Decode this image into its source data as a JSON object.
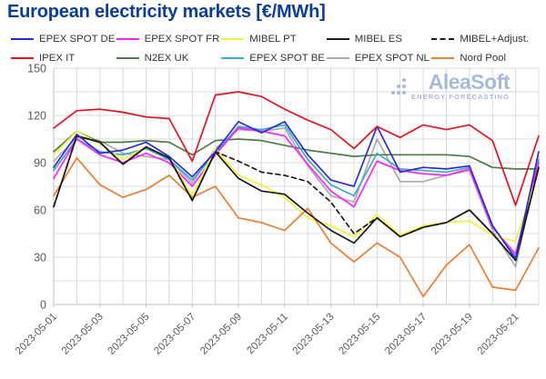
{
  "title": "European electricity markets [€/MWh]",
  "watermark": {
    "name": "AleaSoft",
    "tagline": "ENERGY FORECASTING",
    "color": "#9db1d6"
  },
  "chart_data": {
    "type": "line",
    "title": "European electricity markets [€/MWh]",
    "xlabel": "",
    "ylabel": "",
    "ylim": [
      0,
      150
    ],
    "ytick_step": 30,
    "grid_minor_step": 15,
    "grid": true,
    "legend_position": "top",
    "x_tick_every": 2,
    "axis_label_color": "#595959",
    "grid_color": "#d9d9d9",
    "axis_line_color": "#bfbfbf",
    "x": [
      "2023-05-01",
      "2023-05-02",
      "2023-05-03",
      "2023-05-04",
      "2023-05-05",
      "2023-05-06",
      "2023-05-07",
      "2023-05-08",
      "2023-05-09",
      "2023-05-10",
      "2023-05-11",
      "2023-05-12",
      "2023-05-13",
      "2023-05-14",
      "2023-05-15",
      "2023-05-16",
      "2023-05-17",
      "2023-05-18",
      "2023-05-19",
      "2023-05-20",
      "2023-05-21",
      "2023-05-22"
    ],
    "series": [
      {
        "name": "EPEX SPOT DE",
        "color": "#2b2bd5",
        "dash": "solid",
        "values": [
          87,
          108,
          96,
          98,
          103,
          94,
          81,
          97,
          116,
          109,
          116,
          95,
          79,
          75,
          113,
          84,
          87,
          86,
          88,
          50,
          29,
          97
        ]
      },
      {
        "name": "EPEX SPOT FR",
        "color": "#ff22ff",
        "dash": "solid",
        "values": [
          80,
          105,
          95,
          90,
          96,
          90,
          75,
          95,
          112,
          110,
          107,
          89,
          72,
          62,
          91,
          85,
          83,
          82,
          86,
          49,
          32,
          90
        ]
      },
      {
        "name": "MIBEL PT",
        "color": "#f2f23c",
        "dash": "solid",
        "values": [
          95,
          110,
          102,
          92,
          100,
          93,
          69,
          99,
          82,
          76,
          68,
          55,
          50,
          43,
          57,
          44,
          50,
          52,
          53,
          44,
          40,
          85
        ]
      },
      {
        "name": "MIBEL ES",
        "color": "#1a1a1a",
        "dash": "solid",
        "values": [
          62,
          107,
          103,
          89,
          100,
          93,
          66,
          97,
          80,
          72,
          70,
          58,
          47,
          39,
          55,
          43,
          49,
          52,
          60,
          45,
          28,
          87
        ]
      },
      {
        "name": "MIBEL+Adjust.",
        "color": "#1a1a1a",
        "dash": "dashed",
        "values": [
          62,
          107,
          103,
          89,
          100,
          93,
          66,
          97,
          91,
          84,
          82,
          78,
          65,
          45,
          55,
          43,
          49,
          52,
          60,
          45,
          28,
          87
        ]
      },
      {
        "name": "IPEX IT",
        "color": "#e81123",
        "dash": "solid",
        "values": [
          112,
          123,
          124,
          122,
          119,
          118,
          91,
          133,
          135,
          132,
          124,
          117,
          111,
          99,
          113,
          106,
          114,
          111,
          114,
          104,
          63,
          107
        ]
      },
      {
        "name": "N2EX UK",
        "color": "#4e7b48",
        "dash": "solid",
        "values": [
          97,
          110,
          103,
          103,
          104,
          103,
          95,
          104,
          105,
          104,
          101,
          98,
          96,
          94,
          95,
          95,
          95,
          95,
          94,
          87,
          86,
          86
        ]
      },
      {
        "name": "EPEX SPOT BE",
        "color": "#3aaccb",
        "dash": "solid",
        "values": [
          85,
          105,
          97,
          95,
          99,
          92,
          79,
          96,
          113,
          111,
          114,
          92,
          76,
          69,
          96,
          86,
          85,
          84,
          87,
          50,
          30,
          92
        ]
      },
      {
        "name": "EPEX SPOT NL",
        "color": "#ababab",
        "dash": "solid",
        "values": [
          91,
          106,
          104,
          96,
          94,
          92,
          77,
          99,
          111,
          110,
          112,
          88,
          69,
          65,
          105,
          78,
          78,
          82,
          85,
          47,
          24,
          90
        ]
      },
      {
        "name": "Nord Pool",
        "color": "#ed7d31",
        "dash": "solid",
        "values": [
          69,
          93,
          76,
          68,
          73,
          82,
          68,
          75,
          55,
          52,
          47,
          61,
          39,
          27,
          39,
          30,
          5,
          25,
          38,
          11,
          9,
          36
        ]
      }
    ]
  }
}
